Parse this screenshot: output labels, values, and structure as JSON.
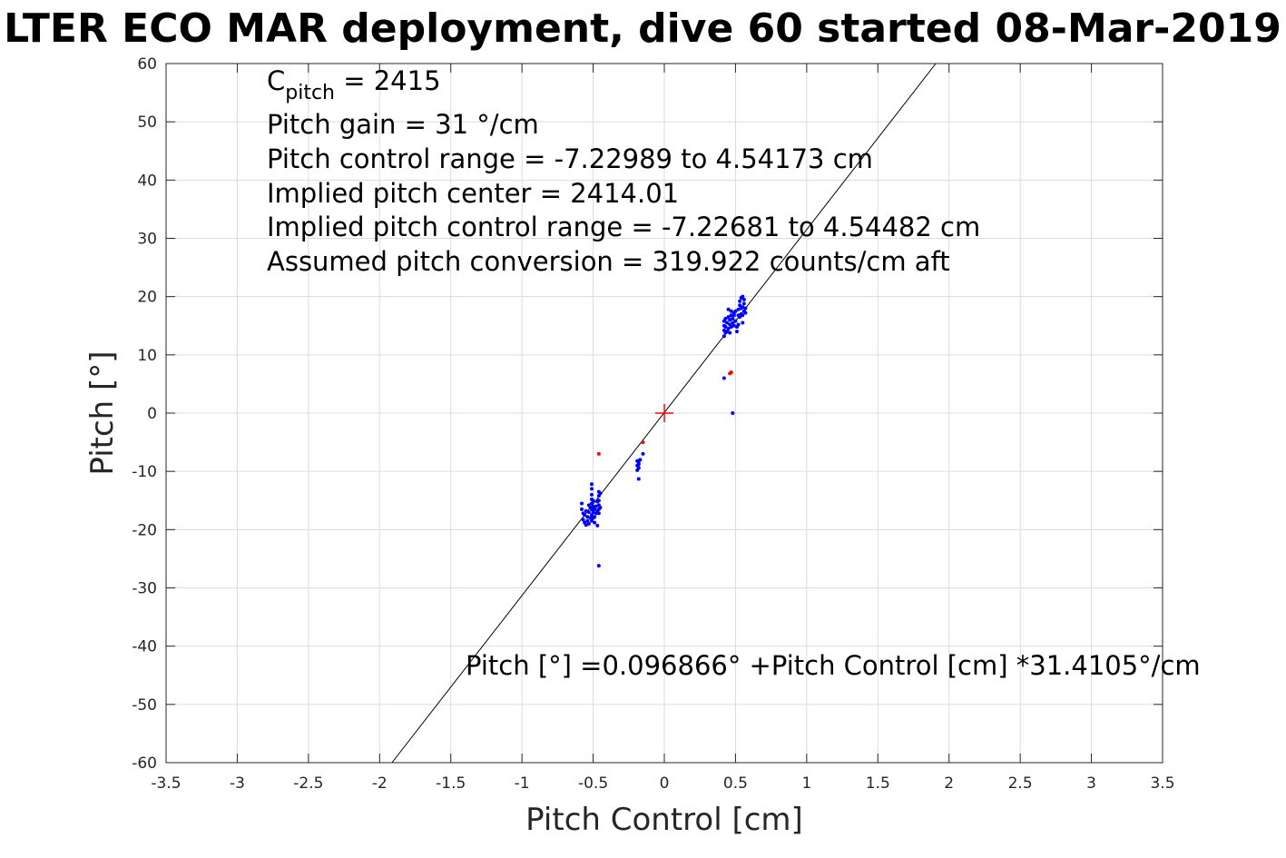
{
  "chart_data": {
    "type": "scatter",
    "title": "LTER ECO MAR deployment, dive 60 started 08-Mar-2019",
    "xlabel": "Pitch Control [cm]",
    "ylabel": "Pitch [°]",
    "xlim": [
      -3.5,
      3.5
    ],
    "ylim": [
      -60,
      60
    ],
    "x_ticks": [
      -3.5,
      -3,
      -2.5,
      -2,
      -1.5,
      -1,
      -0.5,
      0,
      0.5,
      1,
      1.5,
      2,
      2.5,
      3,
      3.5
    ],
    "x_tick_labels": [
      "-3.5",
      "-3",
      "-2.5",
      "-2",
      "-1.5",
      "-1",
      "-0.5",
      "0",
      "0.5",
      "1",
      "1.5",
      "2",
      "2.5",
      "3",
      "3.5"
    ],
    "y_ticks": [
      60,
      50,
      40,
      30,
      20,
      10,
      0,
      -10,
      -20,
      -30,
      -40,
      -50,
      -60
    ],
    "y_tick_labels": [
      "60",
      "50",
      "40",
      "30",
      "20",
      "10",
      "0",
      "-10",
      "-20",
      "-30",
      "-40",
      "-50",
      "-60"
    ],
    "grid": true,
    "colors": {
      "data_points": "#0000ff",
      "excluded_points": "#ff0000",
      "fit_line": "#000000",
      "center_marker": "#ff0000",
      "grid": "#dcdcdc"
    },
    "fit_line": {
      "intercept": 0.096866,
      "slope": 31.4105
    },
    "center_marker": {
      "x": 0,
      "y": 0,
      "marker": "+"
    },
    "series": [
      {
        "color": "#0000ff",
        "points": [
          [
            -0.58,
            -15.5
          ],
          [
            -0.58,
            -16.5
          ],
          [
            -0.57,
            -17.2
          ],
          [
            -0.57,
            -18.3
          ],
          [
            -0.56,
            -17.5
          ],
          [
            -0.56,
            -18.8
          ],
          [
            -0.55,
            -19.2
          ],
          [
            -0.55,
            -16.8
          ],
          [
            -0.54,
            -17.8
          ],
          [
            -0.54,
            -18.5
          ],
          [
            -0.53,
            -15.8
          ],
          [
            -0.53,
            -17.0
          ],
          [
            -0.53,
            -19.0
          ],
          [
            -0.52,
            -16.2
          ],
          [
            -0.52,
            -18.0
          ],
          [
            -0.51,
            -12.2
          ],
          [
            -0.51,
            -13.0
          ],
          [
            -0.51,
            -14.0
          ],
          [
            -0.51,
            -14.8
          ],
          [
            -0.51,
            -15.5
          ],
          [
            -0.51,
            -16.5
          ],
          [
            -0.51,
            -17.5
          ],
          [
            -0.51,
            -18.5
          ],
          [
            -0.5,
            -15.0
          ],
          [
            -0.5,
            -16.0
          ],
          [
            -0.5,
            -17.0
          ],
          [
            -0.5,
            -18.0
          ],
          [
            -0.49,
            -16.5
          ],
          [
            -0.49,
            -17.8
          ],
          [
            -0.49,
            -18.8
          ],
          [
            -0.48,
            -16.0
          ],
          [
            -0.48,
            -17.2
          ],
          [
            -0.47,
            -15.2
          ],
          [
            -0.47,
            -16.8
          ],
          [
            -0.47,
            -19.3
          ],
          [
            -0.46,
            -13.5
          ],
          [
            -0.46,
            -14.2
          ],
          [
            -0.46,
            -15.0
          ],
          [
            -0.46,
            -15.8
          ],
          [
            -0.46,
            -16.5
          ],
          [
            -0.46,
            -17.2
          ],
          [
            -0.46,
            -26.2
          ],
          [
            -0.45,
            -13.8
          ],
          [
            -0.45,
            -16.2
          ],
          [
            -0.19,
            -8.2
          ],
          [
            -0.19,
            -9.0
          ],
          [
            -0.19,
            -9.8
          ],
          [
            -0.18,
            -8.5
          ],
          [
            -0.18,
            -8.8
          ],
          [
            -0.18,
            -9.4
          ],
          [
            -0.18,
            -11.3
          ],
          [
            -0.17,
            -8.0
          ],
          [
            -0.15,
            -7.0
          ],
          [
            0.42,
            13.2
          ],
          [
            0.42,
            14.2
          ],
          [
            0.42,
            15.0
          ],
          [
            0.42,
            15.8
          ],
          [
            0.43,
            13.8
          ],
          [
            0.43,
            14.8
          ],
          [
            0.43,
            16.2
          ],
          [
            0.44,
            14.0
          ],
          [
            0.44,
            15.5
          ],
          [
            0.45,
            14.5
          ],
          [
            0.45,
            16.5
          ],
          [
            0.45,
            17.8
          ],
          [
            0.46,
            15.2
          ],
          [
            0.46,
            16.0
          ],
          [
            0.46,
            13.8
          ],
          [
            0.47,
            14.8
          ],
          [
            0.47,
            16.8
          ],
          [
            0.47,
            17.5
          ],
          [
            0.48,
            15.5
          ],
          [
            0.48,
            16.2
          ],
          [
            0.49,
            15.0
          ],
          [
            0.49,
            16.8
          ],
          [
            0.49,
            17.2
          ],
          [
            0.5,
            15.8
          ],
          [
            0.5,
            17.5
          ],
          [
            0.51,
            14.0
          ],
          [
            0.51,
            14.8
          ],
          [
            0.52,
            15.2
          ],
          [
            0.52,
            16.8
          ],
          [
            0.52,
            17.8
          ],
          [
            0.53,
            16.5
          ],
          [
            0.53,
            18.5
          ],
          [
            0.53,
            19.2
          ],
          [
            0.54,
            17.0
          ],
          [
            0.54,
            18.0
          ],
          [
            0.54,
            19.8
          ],
          [
            0.55,
            16.8
          ],
          [
            0.55,
            18.2
          ],
          [
            0.55,
            20.0
          ],
          [
            0.55,
            15.5
          ],
          [
            0.56,
            17.5
          ],
          [
            0.56,
            18.8
          ],
          [
            0.56,
            19.5
          ],
          [
            0.57,
            17.2
          ],
          [
            0.57,
            18.0
          ],
          [
            0.42,
            6.0
          ],
          [
            0.48,
            0.0
          ]
        ]
      },
      {
        "color": "#ff0000",
        "points": [
          [
            -0.46,
            -7.0
          ],
          [
            0.46,
            6.8
          ],
          [
            0.47,
            7.0
          ],
          [
            -0.15,
            -5.0
          ]
        ]
      }
    ],
    "annotations": {
      "c_pitch": {
        "symbol": "C",
        "subscript": "pitch",
        "text": " = 2415"
      },
      "lines": [
        "Pitch gain = 31 °/cm",
        "Pitch control range = -7.22989 to 4.54173 cm",
        "Implied pitch center = 2414.01",
        "Implied pitch control range = -7.22681 to 4.54482 cm",
        "Assumed pitch conversion = 319.922 counts/cm aft"
      ],
      "fit_equation": "Pitch [°] =0.096866° +Pitch Control [cm] *31.4105°/cm"
    }
  }
}
